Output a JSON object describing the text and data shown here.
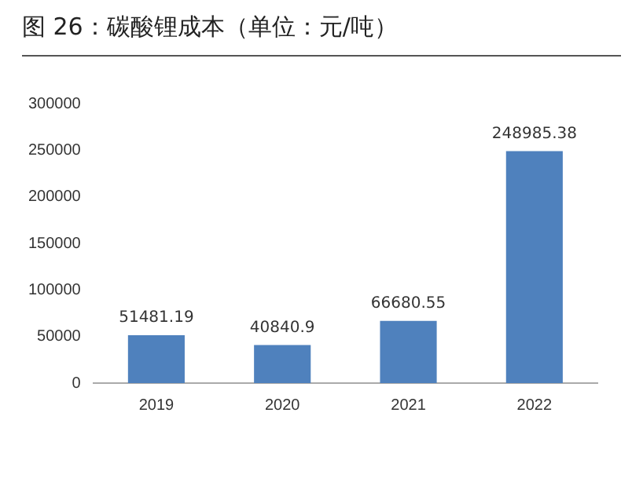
{
  "chart_data": {
    "type": "bar",
    "title": "图 26：碳酸锂成本（单位：元/吨）",
    "categories": [
      "2019",
      "2020",
      "2021",
      "2022"
    ],
    "values": [
      51481.19,
      40840.9,
      66680.55,
      248985.38
    ],
    "color": "#4f81bd",
    "value_labels": [
      "51481.19",
      "40840.9",
      "66680.55",
      "248985.38"
    ],
    "ylim": [
      0,
      300000
    ],
    "yticks": [
      0,
      50000,
      100000,
      150000,
      200000,
      250000,
      300000
    ],
    "grid": false,
    "legend": false
  }
}
